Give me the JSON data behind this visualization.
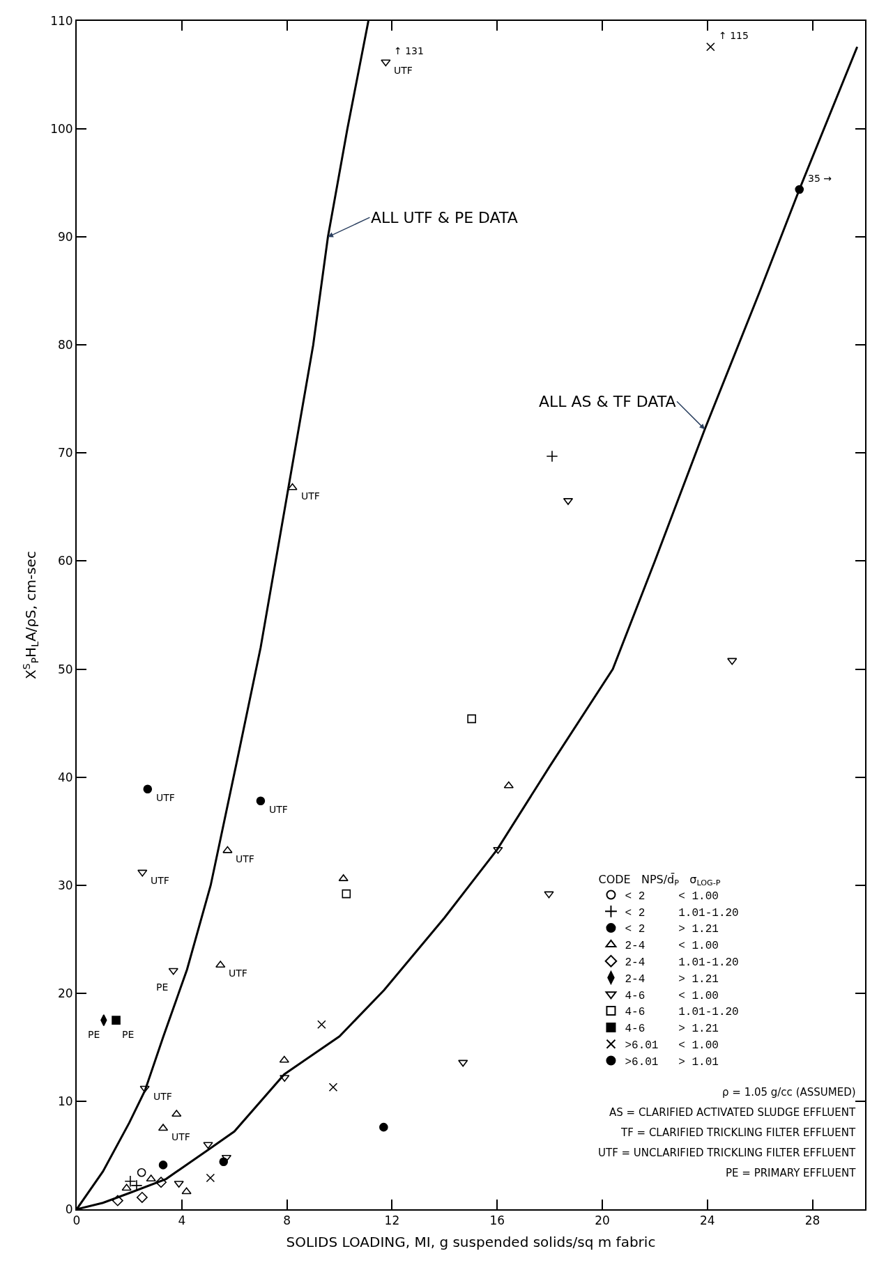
{
  "chart_data": {
    "type": "scatter",
    "xlabel": "SOLIDS LOADING, MI, g suspended solids/sq m fabric",
    "ylabel": "X$^{S}$$_{P}$H$_{L}$A/ρS, cm-sec",
    "xlim": [
      0,
      30
    ],
    "ylim": [
      0,
      110
    ],
    "xticks": [
      0,
      4,
      8,
      12,
      16,
      20,
      24,
      28
    ],
    "yticks": [
      0,
      10,
      20,
      30,
      40,
      50,
      60,
      70,
      80,
      90,
      100,
      110
    ],
    "legend": "bottom right",
    "legend_title": "CODE   NPS/d̄$_{P}$   σ$_{LOG-P}$",
    "series": [
      {
        "name": "< 2     < 1.00",
        "color": "#000000",
        "marker": "circle-open",
        "x": [
          2.47
        ],
        "values": [
          3.4
        ]
      },
      {
        "name": "< 2     1.01-1.20",
        "color": "#000000",
        "marker": "plus",
        "x": [
          2.04,
          2.28,
          18.09
        ],
        "values": [
          2.6,
          2.2,
          69.7
        ]
      },
      {
        "name": "< 2     > 1.21",
        "color": "#000000",
        "marker": "circle",
        "x": [
          3.29,
          11.68,
          5.59
        ],
        "values": [
          4.1,
          7.6,
          4.4
        ]
      },
      {
        "name": "2-4     < 1.00",
        "color": "#000000",
        "marker": "triangle-up-open",
        "x": [
          8.21,
          5.74,
          5.47,
          10.15,
          16.44,
          7.9,
          3.8,
          3.29,
          1.9,
          4.18,
          2.83
        ],
        "values": [
          66.8,
          33.2,
          22.6,
          30.6,
          39.2,
          13.8,
          8.8,
          7.5,
          1.95,
          1.63,
          2.8
        ]
      },
      {
        "name": "2-4     1.01-1.20",
        "color": "#000000",
        "marker": "diamond-open",
        "x": [
          1.56,
          2.49,
          3.21
        ],
        "values": [
          0.8,
          1.1,
          2.5
        ]
      },
      {
        "name": "2-4     > 1.21",
        "color": "#000000",
        "marker": "diamond-tall",
        "x": [
          1.03
        ],
        "values": [
          17.5
        ]
      },
      {
        "name": "4-6     < 1.00",
        "color": "#000000",
        "marker": "triangle-down-open",
        "x": [
          11.76,
          18.7,
          24.94,
          16.03,
          17.97,
          14.7,
          2.5,
          3.68,
          2.59,
          7.91,
          5.0,
          5.7,
          3.89
        ],
        "values": [
          106.2,
          65.6,
          50.8,
          33.3,
          29.2,
          13.6,
          31.2,
          22.1,
          11.2,
          12.2,
          6.0,
          4.8,
          2.4
        ]
      },
      {
        "name": "4-6     1.01-1.20",
        "color": "#000000",
        "marker": "square-open",
        "x": [
          15.03,
          10.26
        ],
        "values": [
          45.4,
          29.2
        ]
      },
      {
        "name": "4-6     > 1.21",
        "color": "#000000",
        "marker": "square",
        "x": [
          1.5
        ],
        "values": [
          17.5
        ]
      },
      {
        "name": ">6.01   < 1.00",
        "color": "#000000",
        "marker": "cross",
        "x": [
          9.32,
          9.76,
          5.09,
          24.12
        ],
        "values": [
          17.1,
          11.3,
          2.9,
          107.6
        ]
      },
      {
        "name": ">6.01   > 1.01",
        "color": "#000000",
        "marker": "circle-dot",
        "x": [
          2.7,
          7.0,
          27.5
        ],
        "values": [
          38.9,
          37.8,
          94.4
        ]
      },
      {
        "type": "line",
        "color": "#000000",
        "line_style": "solid",
        "x": [
          0,
          1,
          2,
          2.6,
          3.3,
          4.2,
          5.1,
          6.1,
          7.0,
          8.0,
          9.0,
          9.56,
          10.3,
          11.1
        ],
        "values": [
          0,
          3.5,
          8,
          11,
          16,
          22.2,
          30,
          41.5,
          52,
          66,
          80,
          90,
          100,
          110
        ]
      },
      {
        "type": "line",
        "color": "#000000",
        "line_style": "solid",
        "x": [
          0,
          1,
          2,
          3.4,
          5,
          6,
          7.9,
          10,
          11.7,
          14,
          16,
          18,
          20.4,
          22,
          23.9,
          26,
          27.5,
          29.7
        ],
        "values": [
          0,
          0.6,
          1.5,
          2.8,
          5.5,
          7.2,
          12.5,
          16,
          20.3,
          27,
          33.3,
          41,
          50,
          60,
          72.2,
          85,
          94.4,
          107.6
        ]
      }
    ],
    "annotations": [
      {
        "text": "ALL UTF & PE DATA",
        "x": 9.56,
        "y": 90
      },
      {
        "text": "ALL AS & TF DATA",
        "x": 23.9,
        "y": 72.2
      },
      {
        "text": "UTF",
        "x": 11.76,
        "y": 106.2
      },
      {
        "text": "UTF",
        "x": 8.21,
        "y": 66.8
      },
      {
        "text": "UTF",
        "x": 2.7,
        "y": 38.9
      },
      {
        "text": "UTF",
        "x": 7.0,
        "y": 37.8
      },
      {
        "text": "UTF",
        "x": 5.74,
        "y": 33.2
      },
      {
        "text": "UTF",
        "x": 2.5,
        "y": 31.2
      },
      {
        "text": "UTF",
        "x": 5.47,
        "y": 22.6
      },
      {
        "text": "PE",
        "x": 3.68,
        "y": 22.1
      },
      {
        "text": "PE",
        "x": 1.03,
        "y": 17.5
      },
      {
        "text": "PE",
        "x": 1.5,
        "y": 17.5
      },
      {
        "text": "UTF",
        "x": 2.59,
        "y": 11.2
      },
      {
        "text": "UTF",
        "x": 3.29,
        "y": 7.5
      },
      {
        "text": "↑ 131",
        "x": 11.76,
        "y": 106.2
      },
      {
        "text": "↑ 115",
        "x": 24.12,
        "y": 107.6
      },
      {
        "text": "35 →",
        "x": 27.5,
        "y": 94.4
      },
      "ρ = 1.05 g/cc (ASSUMED)",
      "AS = CLARIFIED ACTIVATED SLUDGE EFFLUENT",
      "TF = CLARIFIED TRICKLING FILTER EFFLUENT",
      "UTF = UNCLARIFIED TRICKLING FILTER EFFLUENT",
      "PE = PRIMARY EFFLUENT"
    ]
  }
}
